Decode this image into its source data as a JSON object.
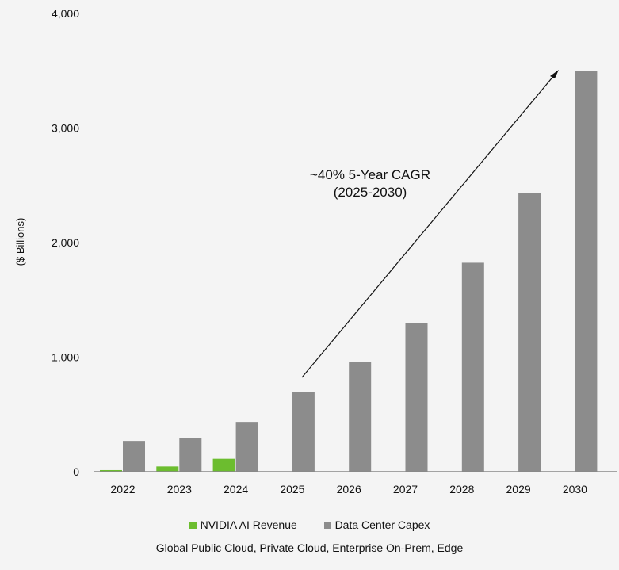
{
  "chart_data": {
    "type": "bar",
    "title": "",
    "xlabel": "",
    "ylabel": "($ Billions)",
    "ylim": [
      0,
      4000
    ],
    "yticks": [
      "0",
      "1,000",
      "2,000",
      "3,000",
      "4,000"
    ],
    "ytick_values": [
      0,
      1000,
      2000,
      3000,
      4000
    ],
    "grid": false,
    "legend_placement": "bottom",
    "categories": [
      "2022",
      "2023",
      "2024",
      "2025",
      "2026",
      "2027",
      "2028",
      "2029",
      "2030"
    ],
    "series": [
      {
        "name": "NVIDIA AI Revenue",
        "color": "#6cbd2f",
        "values": [
          14,
          46,
          113,
          null,
          null,
          null,
          null,
          null,
          null
        ]
      },
      {
        "name": "Data Center Capex",
        "color": "#8c8c8c",
        "values": [
          269,
          297,
          435,
          694,
          960,
          1299,
          1824,
          2432,
          3496
        ]
      }
    ],
    "annotation": {
      "line1": "~40% 5-Year CAGR",
      "line2": "(2025-2030)"
    },
    "footnote": "Global Public Cloud, Private Cloud, Enterprise On-Prem, Edge"
  }
}
